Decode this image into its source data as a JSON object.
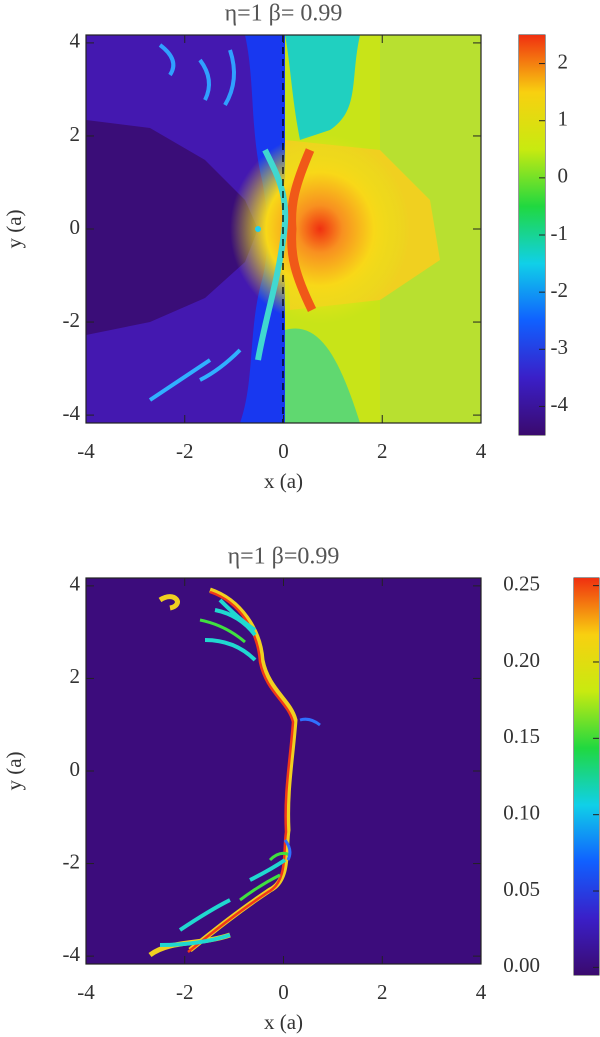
{
  "chart_data": [
    {
      "type": "heatmap",
      "title": "η=1  β=  0.99",
      "xlabel": "x (a)",
      "ylabel": "y (a)",
      "xlim": [
        -4,
        4
      ],
      "ylim": [
        -4.17,
        4.17
      ],
      "xticks": [
        -4,
        -2,
        0,
        2,
        4
      ],
      "yticks": [
        -4,
        -2,
        0,
        2,
        4
      ],
      "colorbar": {
        "clim": [
          -4.5,
          2.5
        ],
        "ticks": [
          -4,
          -3,
          -2,
          -1,
          0,
          1,
          2
        ]
      },
      "colormap": [
        "#3a0a6e",
        "#3a1fc8",
        "#1060ff",
        "#10d0e8",
        "#20d840",
        "#c8ea10",
        "#f8d010",
        "#f03010"
      ]
    },
    {
      "type": "heatmap",
      "title": "η=1  β=0.99",
      "xlabel": "x (a)",
      "ylabel": "y (a)",
      "xlim": [
        -4,
        4
      ],
      "ylim": [
        -4.17,
        4.17
      ],
      "xticks": [
        -4,
        -2,
        0,
        2,
        4
      ],
      "yticks": [
        -4,
        -2,
        0,
        2,
        4
      ],
      "colorbar": {
        "clim": [
          -0.005,
          0.255
        ],
        "ticks": [
          {
            "value": 0,
            "label": "0.00"
          },
          0.05,
          {
            "value": 0.1,
            "label": "0.10"
          },
          0.15,
          {
            "value": 0.2,
            "label": "0.20"
          },
          0.25
        ]
      },
      "colormap": [
        "#3a0a6e",
        "#3a1fc8",
        "#1060ff",
        "#10d0e8",
        "#20d840",
        "#c8ea10",
        "#f8d010",
        "#f03010"
      ]
    }
  ]
}
